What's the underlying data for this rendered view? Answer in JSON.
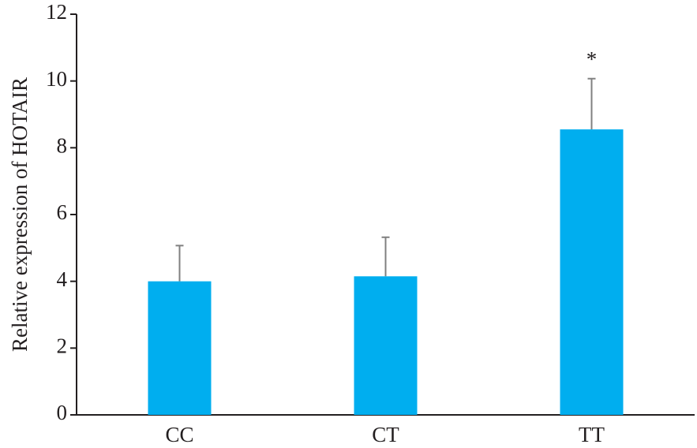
{
  "chart_data": {
    "type": "bar",
    "y_label": "Relative expression of HOTAIR",
    "categories": [
      "CC",
      "CT",
      "TT"
    ],
    "values": [
      4.0,
      4.15,
      8.55
    ],
    "errors": [
      1.07,
      1.17,
      1.52
    ],
    "color": "#00aeef",
    "error_color": "#808080",
    "annotation": "*",
    "ylim": [
      0,
      12
    ],
    "yticks": [
      0,
      2,
      4,
      6,
      8,
      10,
      12
    ],
    "grid": false
  }
}
